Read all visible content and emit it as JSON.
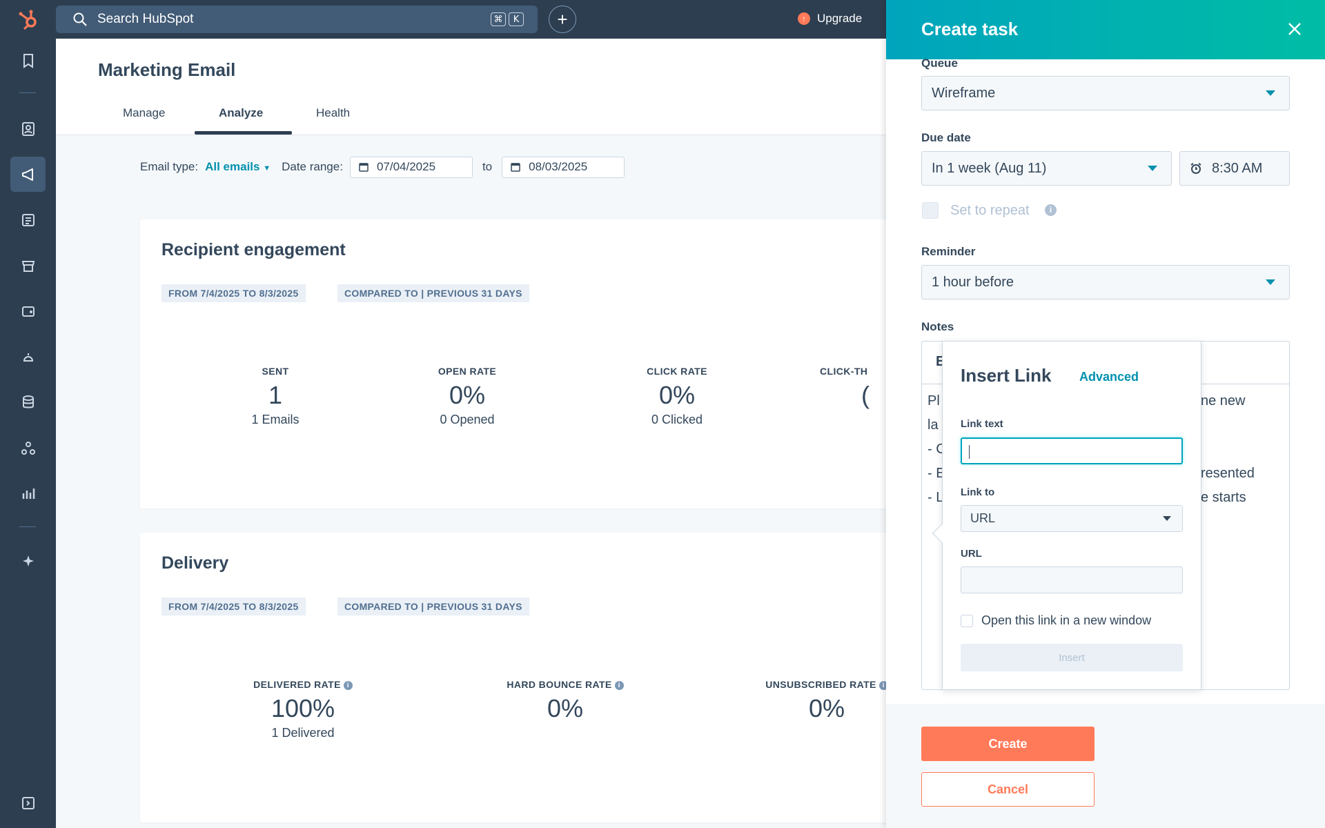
{
  "topbar": {
    "search_placeholder": "Search HubSpot",
    "shortcut_keys": [
      "⌘",
      "K"
    ],
    "add_symbol": "+",
    "upgrade_label": "Upgrade"
  },
  "page": {
    "title": "Marketing Email",
    "tabs": [
      {
        "label": "Manage"
      },
      {
        "label": "Analyze"
      },
      {
        "label": "Health"
      }
    ],
    "active_tab": "Analyze"
  },
  "filters": {
    "email_type_label": "Email type:",
    "email_type_value": "All emails",
    "date_range_label": "Date range:",
    "start_date": "07/04/2025",
    "to_label": "to",
    "end_date": "08/03/2025"
  },
  "engagement": {
    "title": "Recipient engagement",
    "pill_from": "FROM 7/4/2025 TO 8/3/2025",
    "pill_compare": "COMPARED TO | PREVIOUS 31 DAYS",
    "stats": [
      {
        "label": "SENT",
        "value": "1",
        "sub": "1 Emails"
      },
      {
        "label": "OPEN RATE",
        "value": "0%",
        "sub": "0 Opened"
      },
      {
        "label": "CLICK RATE",
        "value": "0%",
        "sub": "0 Clicked"
      },
      {
        "label": "CLICK-TH",
        "value": "(",
        "sub": ""
      }
    ]
  },
  "delivery": {
    "title": "Delivery",
    "pill_from": "FROM 7/4/2025 TO 8/3/2025",
    "pill_compare": "COMPARED TO | PREVIOUS 31 DAYS",
    "stats": [
      {
        "label": "DELIVERED RATE",
        "value": "100%",
        "sub": "1 Delivered"
      },
      {
        "label": "HARD BOUNCE RATE",
        "value": "0%",
        "sub": ""
      },
      {
        "label": "UNSUBSCRIBED RATE",
        "value": "0%",
        "sub": ""
      }
    ]
  },
  "panel": {
    "title": "Create task",
    "queue_label": "Queue",
    "queue_value": "Wireframe",
    "due_label": "Due date",
    "due_value": "In 1 week (Aug 11)",
    "time_value": "8:30 AM",
    "repeat_label": "Set to repeat",
    "reminder_label": "Reminder",
    "reminder_value": "1 hour before",
    "notes_label": "Notes",
    "notes_toolbar_fragment": "E",
    "notes_lines_left": [
      "Pl",
      "la",
      "- C",
      "- E",
      "- L"
    ],
    "notes_lines_right": [
      "ne new",
      "resented",
      "e starts"
    ],
    "create_label": "Create",
    "cancel_label": "Cancel"
  },
  "insert_link": {
    "title": "Insert Link",
    "advanced_label": "Advanced",
    "link_text_label": "Link text",
    "link_text_value": "",
    "link_to_label": "Link to",
    "link_to_value": "URL",
    "url_label": "URL",
    "url_value": "",
    "new_window_label": "Open this link in a new window",
    "insert_label": "Insert"
  },
  "colors": {
    "nav_bg": "#2d3e50",
    "accent_teal": "#00a4bd",
    "accent_orange": "#ff7a59",
    "link_blue": "#0091ae"
  }
}
